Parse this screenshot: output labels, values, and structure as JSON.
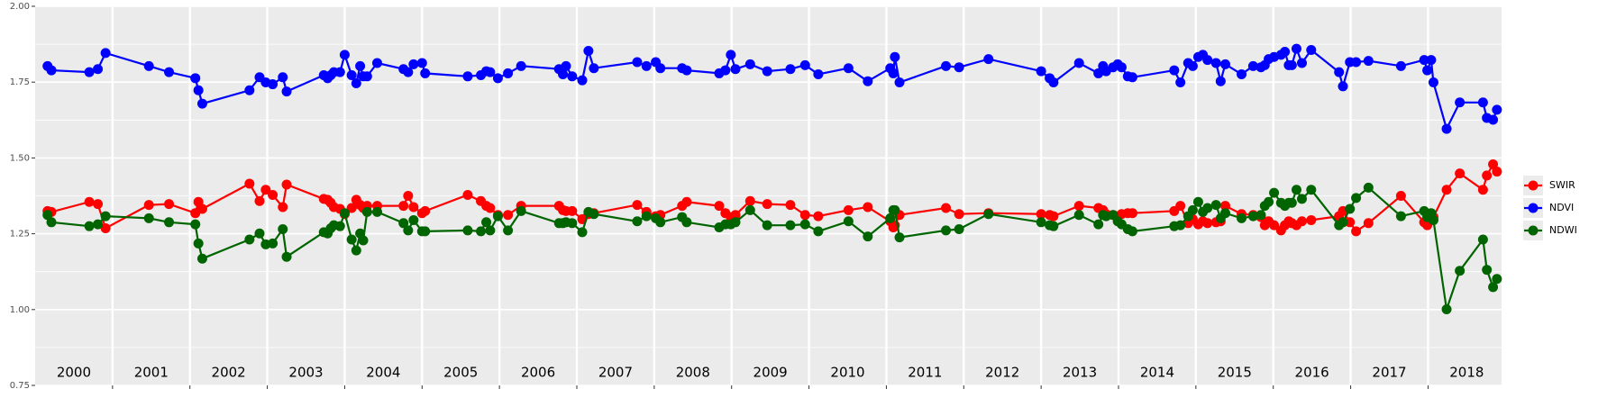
{
  "chart_data": {
    "type": "line",
    "x": [
      2000.16,
      2000.21,
      2000.7,
      2000.81,
      2000.91,
      2001.47,
      2001.73,
      2002.07,
      2002.11,
      2002.16,
      2002.77,
      2002.9,
      2002.98,
      2003.07,
      2003.2,
      2003.25,
      2003.73,
      2003.78,
      2003.82,
      2003.86,
      2003.94,
      2004.0,
      2004.09,
      2004.15,
      2004.2,
      2004.24,
      2004.29,
      2004.42,
      2004.76,
      2004.82,
      2004.89,
      2005.0,
      2005.04,
      2005.59,
      2005.76,
      2005.83,
      2005.88,
      2005.98,
      2006.11,
      2006.28,
      2006.77,
      2006.82,
      2006.86,
      2006.94,
      2007.07,
      2007.15,
      2007.22,
      2007.78,
      2007.9,
      2008.02,
      2008.08,
      2008.36,
      2008.42,
      2008.84,
      2008.92,
      2008.99,
      2009.05,
      2009.24,
      2009.46,
      2009.76,
      2009.95,
      2010.12,
      2010.51,
      2010.76,
      2011.05,
      2011.09,
      2011.11,
      2011.17,
      2011.77,
      2011.94,
      2012.32,
      2013.0,
      2013.11,
      2013.16,
      2013.49,
      2013.74,
      2013.8,
      2013.84,
      2013.93,
      2013.99,
      2014.04,
      2014.12,
      2014.18,
      2014.72,
      2014.8,
      2014.9,
      2014.96,
      2015.03,
      2015.09,
      2015.15,
      2015.26,
      2015.32,
      2015.38,
      2015.59,
      2015.74,
      2015.84,
      2015.89,
      2015.94,
      2016.01,
      2016.1,
      2016.15,
      2016.2,
      2016.24,
      2016.3,
      2016.37,
      2016.49,
      2016.85,
      2016.9,
      2016.99,
      2017.07,
      2017.23,
      2017.65,
      2017.95,
      2017.99,
      2018.04,
      2018.07,
      2018.24,
      2018.41,
      2018.71,
      2018.76,
      2018.84,
      2018.89
    ],
    "series": [
      {
        "name": "SWIR",
        "color": "#ff0000",
        "values": [
          1.325,
          1.322,
          1.355,
          1.348,
          1.268,
          1.345,
          1.348,
          1.318,
          1.355,
          1.332,
          1.415,
          1.358,
          1.395,
          1.378,
          1.338,
          1.412,
          1.365,
          1.362,
          1.352,
          1.338,
          1.332,
          1.315,
          1.335,
          1.362,
          1.345,
          1.335,
          1.342,
          1.342,
          1.342,
          1.375,
          1.338,
          1.318,
          1.325,
          1.378,
          1.358,
          1.342,
          1.335,
          1.312,
          1.312,
          1.342,
          1.342,
          1.328,
          1.325,
          1.325,
          1.298,
          1.315,
          1.318,
          1.345,
          1.322,
          1.308,
          1.312,
          1.342,
          1.355,
          1.342,
          1.318,
          1.305,
          1.312,
          1.358,
          1.348,
          1.345,
          1.312,
          1.308,
          1.328,
          1.338,
          1.291,
          1.271,
          1.278,
          1.312,
          1.335,
          1.315,
          1.318,
          1.315,
          1.312,
          1.308,
          1.342,
          1.335,
          1.328,
          1.315,
          1.312,
          1.308,
          1.315,
          1.318,
          1.318,
          1.325,
          1.342,
          1.285,
          1.298,
          1.281,
          1.291,
          1.285,
          1.288,
          1.291,
          1.342,
          1.315,
          1.312,
          1.305,
          1.278,
          1.291,
          1.278,
          1.261,
          1.278,
          1.291,
          1.285,
          1.278,
          1.291,
          1.295,
          1.308,
          1.325,
          1.288,
          1.258,
          1.285,
          1.375,
          1.288,
          1.278,
          1.301,
          1.305,
          1.395,
          1.449,
          1.395,
          1.442,
          1.479,
          1.455
        ]
      },
      {
        "name": "NDVI",
        "color": "#0000ff",
        "values": [
          1.803,
          1.789,
          1.783,
          1.793,
          1.846,
          1.803,
          1.783,
          1.763,
          1.723,
          1.679,
          1.723,
          1.766,
          1.749,
          1.743,
          1.766,
          1.719,
          1.773,
          1.763,
          1.773,
          1.783,
          1.783,
          1.84,
          1.773,
          1.746,
          1.803,
          1.769,
          1.769,
          1.813,
          1.793,
          1.783,
          1.809,
          1.813,
          1.779,
          1.769,
          1.773,
          1.786,
          1.783,
          1.763,
          1.779,
          1.803,
          1.793,
          1.776,
          1.803,
          1.769,
          1.756,
          1.853,
          1.796,
          1.816,
          1.803,
          1.816,
          1.796,
          1.796,
          1.789,
          1.779,
          1.789,
          1.84,
          1.793,
          1.809,
          1.786,
          1.793,
          1.806,
          1.776,
          1.796,
          1.753,
          1.796,
          1.779,
          1.833,
          1.749,
          1.803,
          1.799,
          1.826,
          1.786,
          1.763,
          1.749,
          1.813,
          1.779,
          1.803,
          1.786,
          1.799,
          1.809,
          1.799,
          1.769,
          1.766,
          1.789,
          1.749,
          1.813,
          1.803,
          1.833,
          1.84,
          1.823,
          1.813,
          1.753,
          1.809,
          1.776,
          1.803,
          1.799,
          1.806,
          1.826,
          1.833,
          1.84,
          1.85,
          1.806,
          1.806,
          1.86,
          1.813,
          1.856,
          1.783,
          1.736,
          1.816,
          1.816,
          1.82,
          1.803,
          1.823,
          1.789,
          1.823,
          1.749,
          1.596,
          1.683,
          1.683,
          1.632,
          1.626,
          1.659
        ]
      },
      {
        "name": "NDWI",
        "color": "#006400",
        "values": [
          1.312,
          1.288,
          1.275,
          1.281,
          1.308,
          1.301,
          1.288,
          1.281,
          1.218,
          1.168,
          1.231,
          1.251,
          1.215,
          1.218,
          1.265,
          1.174,
          1.255,
          1.251,
          1.268,
          1.278,
          1.275,
          1.318,
          1.231,
          1.195,
          1.251,
          1.228,
          1.322,
          1.322,
          1.285,
          1.261,
          1.295,
          1.258,
          1.258,
          1.261,
          1.258,
          1.288,
          1.261,
          1.308,
          1.261,
          1.325,
          1.285,
          1.285,
          1.288,
          1.285,
          1.255,
          1.322,
          1.315,
          1.291,
          1.308,
          1.301,
          1.288,
          1.305,
          1.288,
          1.271,
          1.281,
          1.281,
          1.288,
          1.328,
          1.278,
          1.278,
          1.281,
          1.258,
          1.291,
          1.241,
          1.301,
          1.328,
          1.328,
          1.238,
          1.261,
          1.265,
          1.315,
          1.288,
          1.278,
          1.275,
          1.312,
          1.281,
          1.312,
          1.308,
          1.312,
          1.291,
          1.281,
          1.265,
          1.258,
          1.275,
          1.278,
          1.308,
          1.328,
          1.355,
          1.322,
          1.335,
          1.345,
          1.301,
          1.318,
          1.301,
          1.308,
          1.312,
          1.342,
          1.355,
          1.385,
          1.352,
          1.342,
          1.352,
          1.352,
          1.395,
          1.365,
          1.395,
          1.278,
          1.288,
          1.332,
          1.368,
          1.402,
          1.308,
          1.325,
          1.305,
          1.318,
          1.295,
          1.001,
          1.128,
          1.231,
          1.131,
          1.074,
          1.101
        ]
      }
    ],
    "xlim": [
      2000,
      2018.95
    ],
    "xticks": [
      2001,
      2002,
      2003,
      2004,
      2005,
      2006,
      2007,
      2008,
      2009,
      2010,
      2011,
      2012,
      2013,
      2014,
      2015,
      2016,
      2017,
      2018
    ],
    "year_labels": [
      {
        "value": 2000.5,
        "label": "2000"
      },
      {
        "value": 2001.5,
        "label": "2001"
      },
      {
        "value": 2002.5,
        "label": "2002"
      },
      {
        "value": 2003.5,
        "label": "2003"
      },
      {
        "value": 2004.5,
        "label": "2004"
      },
      {
        "value": 2005.5,
        "label": "2005"
      },
      {
        "value": 2006.5,
        "label": "2006"
      },
      {
        "value": 2007.5,
        "label": "2007"
      },
      {
        "value": 2008.5,
        "label": "2008"
      },
      {
        "value": 2009.5,
        "label": "2009"
      },
      {
        "value": 2010.5,
        "label": "2010"
      },
      {
        "value": 2011.5,
        "label": "2011"
      },
      {
        "value": 2012.5,
        "label": "2012"
      },
      {
        "value": 2013.5,
        "label": "2013"
      },
      {
        "value": 2014.5,
        "label": "2014"
      },
      {
        "value": 2015.5,
        "label": "2015"
      },
      {
        "value": 2016.5,
        "label": "2016"
      },
      {
        "value": 2017.5,
        "label": "2017"
      },
      {
        "value": 2018.5,
        "label": "2018"
      }
    ],
    "ylim": [
      0.75,
      2.0
    ],
    "yticks": [
      {
        "value": 0.75,
        "label": "0.75"
      },
      {
        "value": 1.0,
        "label": "1.00"
      },
      {
        "value": 1.25,
        "label": "1.25"
      },
      {
        "value": 1.5,
        "label": "1.50"
      },
      {
        "value": 1.75,
        "label": "1.75"
      },
      {
        "value": 2.0,
        "label": "2.00"
      }
    ],
    "minor_yticks": [
      0.875,
      1.125,
      1.375,
      1.625,
      1.875
    ],
    "grid": true,
    "legend": "right"
  }
}
